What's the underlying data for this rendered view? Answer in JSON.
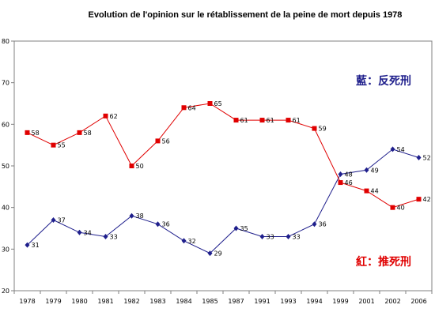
{
  "chart_data": {
    "type": "line",
    "title": "Evolution de l'opinion sur le rétablissement de la peine de mort depuis 1978",
    "xlabel": "",
    "ylabel": "",
    "categories": [
      "1978",
      "1979",
      "1980",
      "1981",
      "1982",
      "1983",
      "1984",
      "1985",
      "1987",
      "1991",
      "1993",
      "1994",
      "1999",
      "2001",
      "2002",
      "2006"
    ],
    "ylim": [
      20,
      80
    ],
    "yticks": [
      "20",
      "30",
      "40",
      "50",
      "60",
      "70",
      "80"
    ],
    "grid": false,
    "series": [
      {
        "key": "against",
        "name": "藍：反死刑",
        "color": "#1f1f8c",
        "marker": "diamond",
        "values": [
          31,
          37,
          34,
          33,
          38,
          36,
          32,
          29,
          35,
          33,
          33,
          36,
          48,
          49,
          54,
          52
        ]
      },
      {
        "key": "for",
        "name": "紅：推死刑",
        "color": "#e00000",
        "marker": "square",
        "values": [
          58,
          55,
          58,
          62,
          50,
          56,
          64,
          65,
          61,
          61,
          61,
          59,
          46,
          44,
          40,
          42
        ]
      }
    ],
    "legend": [
      {
        "text": "藍：反死刑",
        "color": "#1f1f8c",
        "placement": "right-upper"
      },
      {
        "text": "紅：推死刑",
        "color": "#e00000",
        "placement": "right-lower"
      }
    ]
  }
}
